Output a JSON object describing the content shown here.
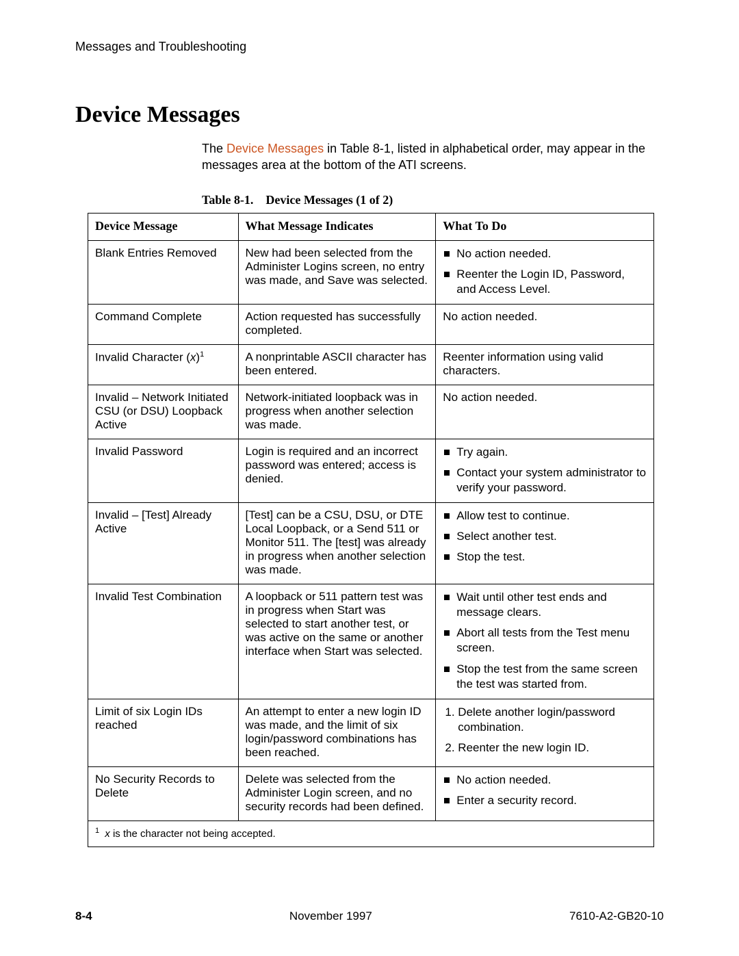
{
  "header": {
    "running_title": "Messages and Troubleshooting"
  },
  "section": {
    "title": "Device Messages"
  },
  "intro": {
    "pre": "The ",
    "link": "Device Messages",
    "post": " in Table 8-1, listed in alphabetical order, may appear in the messages area at the bottom of the ATI screens."
  },
  "table": {
    "caption": "Table 8-1. Device Messages (1 of 2)",
    "columns": [
      "Device Message",
      "What Message Indicates",
      "What To Do"
    ],
    "rows": [
      {
        "msg_plain": "Blank Entries Removed",
        "indicates": "New had been selected from the Administer Logins screen, no entry was made, and Save was selected.",
        "todo_bullets": [
          "No action needed.",
          "Reenter the Login ID, Password, and Access Level."
        ]
      },
      {
        "msg_plain": "Command Complete",
        "indicates": "Action requested has successfully completed.",
        "todo_plain": "No action needed."
      },
      {
        "msg_invalid_char": {
          "pre": "Invalid Character (",
          "x": "x",
          "post": ")",
          "sup": "1"
        },
        "indicates": "A nonprintable ASCII character has been entered.",
        "todo_plain": "Reenter information using valid characters."
      },
      {
        "msg_plain": "Invalid – Network Initiated CSU (or DSU) Loopback Active",
        "indicates": "Network-initiated loopback was in progress when another selection was made.",
        "todo_plain": "No action needed."
      },
      {
        "msg_plain": "Invalid Password",
        "indicates": "Login is required and an incorrect password was entered; access is denied.",
        "todo_bullets": [
          "Try again.",
          "Contact your system administrator to verify your password."
        ]
      },
      {
        "msg_plain": "Invalid – [Test] Already Active",
        "indicates": "[Test] can be a CSU, DSU, or DTE Local Loopback, or a Send 511 or Monitor 511. The [test] was already in progress when another selection was made.",
        "todo_bullets": [
          "Allow test to continue.",
          "Select another test.",
          "Stop the test."
        ]
      },
      {
        "msg_plain": "Invalid Test Combination",
        "indicates": "A loopback or 511 pattern test was in progress when Start was selected to start another test, or was active on the same or another interface when Start was selected.",
        "todo_bullets": [
          "Wait until other test ends and message clears.",
          "Abort all tests from the Test menu screen.",
          "Stop the test from the same screen the test was started from."
        ]
      },
      {
        "msg_plain": "Limit of six Login IDs reached",
        "indicates": "An attempt to enter a new login ID was made, and the limit of six login/password combinations has been reached.",
        "todo_numbered": [
          "Delete another login/password combination.",
          "Reenter the new login ID."
        ]
      },
      {
        "msg_plain": "No Security Records to Delete",
        "indicates": "Delete was selected from the Administer Login screen, and no security records had been defined.",
        "todo_bullets": [
          "No action needed.",
          "Enter a security record."
        ]
      }
    ],
    "footnote": {
      "num": "1",
      "x": "x",
      "text": " is the character not being accepted."
    }
  },
  "footer": {
    "page": "8-4",
    "date": "November 1997",
    "docnum": "7610-A2-GB20-10"
  }
}
